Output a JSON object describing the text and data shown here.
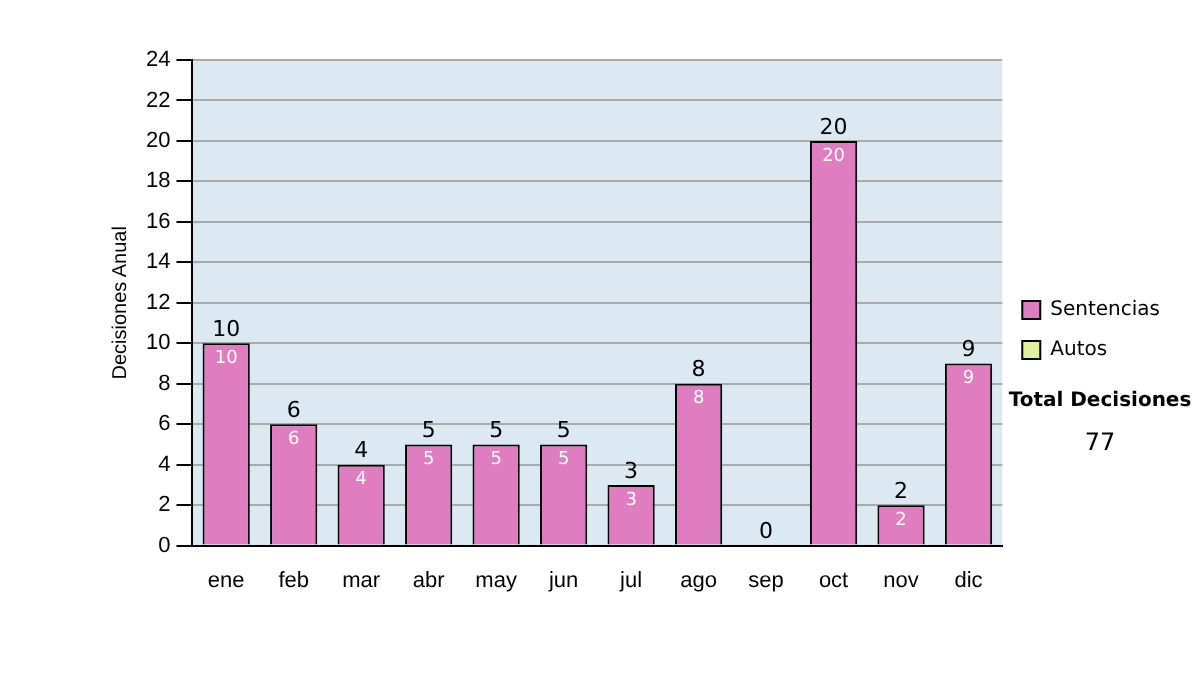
{
  "chart_data": {
    "type": "bar",
    "stacked": true,
    "ylabel": "Decisiones Anual",
    "categories": [
      "ene",
      "feb",
      "mar",
      "abr",
      "may",
      "jun",
      "jul",
      "ago",
      "sep",
      "oct",
      "nov",
      "dic"
    ],
    "series": [
      {
        "name": "Sentencias",
        "color": "#e07cc0",
        "values": [
          10,
          6,
          4,
          5,
          5,
          5,
          3,
          8,
          0,
          20,
          2,
          9
        ],
        "value_labels": [
          "10",
          "6",
          "4",
          "5",
          "5",
          "5",
          "3",
          "8",
          null,
          "20",
          "2",
          "9"
        ]
      },
      {
        "name": "Autos",
        "color": "#e0f0a0",
        "values": [
          0,
          0,
          0,
          0,
          0,
          0,
          0,
          0,
          0,
          0,
          0,
          0
        ]
      }
    ],
    "totals": [
      "10",
      "6",
      "4",
      "5",
      "5",
      "5",
      "3",
      "8",
      "0",
      "20",
      "2",
      "9"
    ],
    "ylim": [
      0,
      24
    ],
    "yticks": [
      0,
      2,
      4,
      6,
      8,
      10,
      12,
      14,
      16,
      18,
      20,
      22,
      24
    ],
    "grid": "y",
    "legend": "right",
    "annotations": [
      "Total Decisiones",
      "77"
    ]
  }
}
